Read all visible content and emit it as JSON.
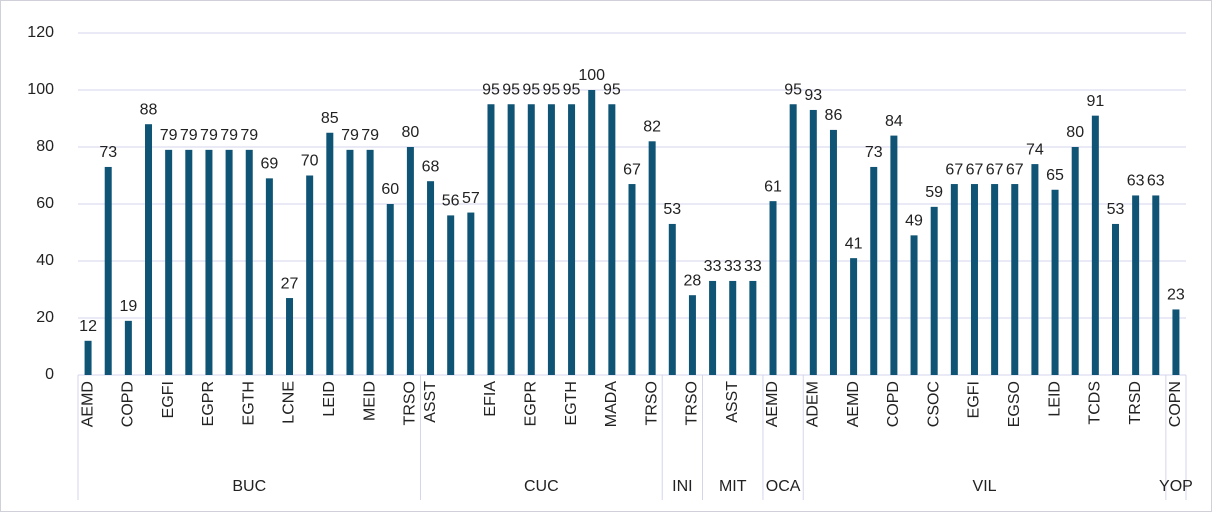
{
  "chart_data": {
    "type": "bar",
    "color": "#0f5474",
    "ylim": [
      0,
      120
    ],
    "yticks": [
      0,
      20,
      40,
      60,
      80,
      100,
      120
    ],
    "grid": true,
    "groups": [
      {
        "name": "BUC",
        "categories": [
          "AEMD",
          null,
          "COPD",
          null,
          "EGFI",
          null,
          "EGPR",
          null,
          "EGTH",
          null,
          "LCNE",
          null,
          "LEID",
          null,
          "MEID",
          null,
          "TRSO"
        ],
        "values": [
          12,
          73,
          19,
          88,
          79,
          79,
          79,
          79,
          79,
          69,
          27,
          70,
          85,
          79,
          79,
          60,
          80
        ]
      },
      {
        "name": "CUC",
        "categories": [
          "ASST",
          null,
          null,
          "EFIA",
          null,
          "EGPR",
          null,
          "EGTH",
          null,
          "MADA",
          null,
          "TRSO"
        ],
        "values": [
          68,
          56,
          57,
          95,
          95,
          95,
          95,
          95,
          100,
          95,
          67,
          82
        ]
      },
      {
        "name": "INI",
        "categories": [
          null,
          "TRSO"
        ],
        "values": [
          53,
          28
        ]
      },
      {
        "name": "MIT",
        "categories": [
          null,
          "ASST",
          null
        ],
        "values": [
          33,
          33,
          33
        ]
      },
      {
        "name": "OCA",
        "categories": [
          "AEMD",
          null
        ],
        "values": [
          61,
          95
        ]
      },
      {
        "name": "VIL",
        "categories": [
          "ADEM",
          null,
          "AEMD",
          null,
          "COPD",
          null,
          "CSOC",
          null,
          "EGFI",
          null,
          "EGSO",
          null,
          "LEID",
          null,
          "TCDS",
          null,
          "TRSD",
          null
        ],
        "values": [
          93,
          86,
          41,
          73,
          84,
          49,
          59,
          67,
          67,
          67,
          67,
          74,
          65,
          80,
          91,
          53,
          63,
          63
        ]
      },
      {
        "name": "YOP",
        "categories": [
          "COPN"
        ],
        "values": [
          23
        ]
      }
    ]
  }
}
